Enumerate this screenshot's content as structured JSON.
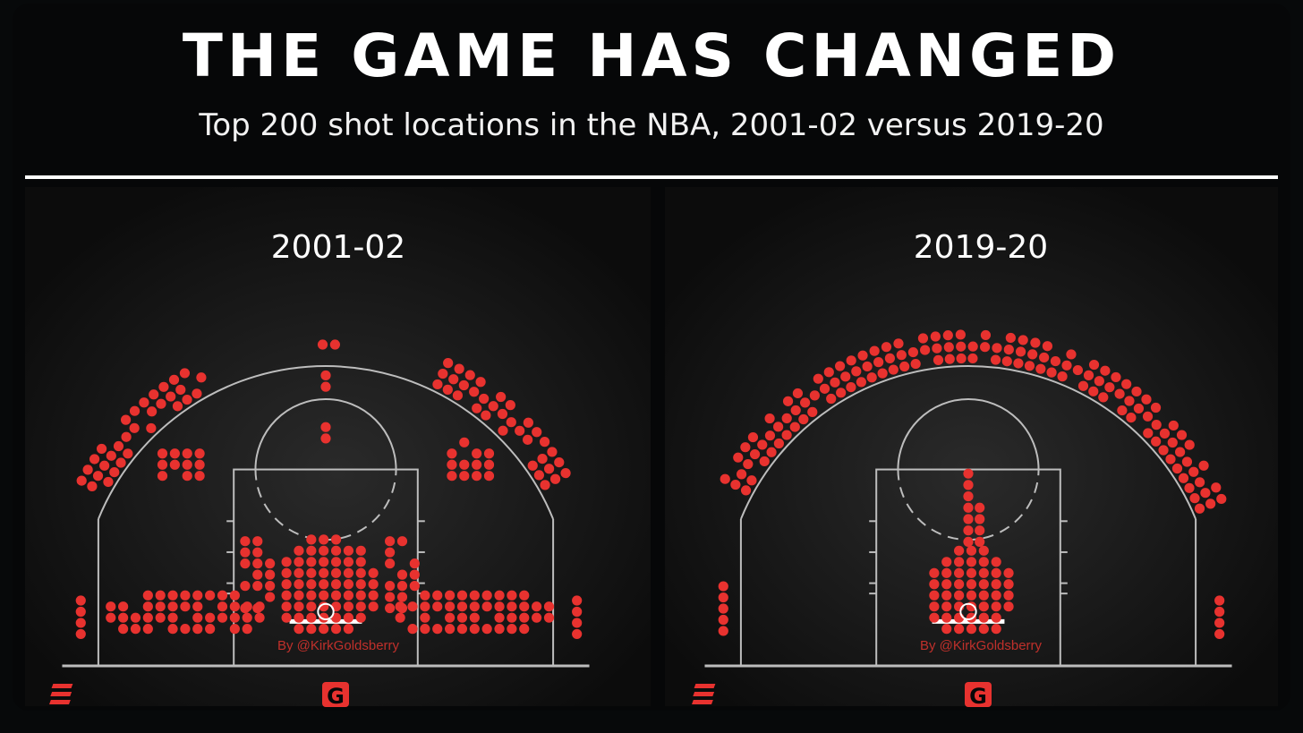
{
  "title": "THE GAME HAS CHANGED",
  "subtitle": "Top 200 shot locations in the NBA, 2001-02 versus 2019-20",
  "credit": "By @KirkGoldsberry",
  "logo": "G",
  "colors": {
    "background": "#07090a",
    "court_lines": "#bdbdbd",
    "shot_dot": "#e8322f",
    "credit_text": "#c0302b",
    "text": "#ffffff"
  },
  "chart_data": [
    {
      "type": "scatter",
      "title": "2001-02",
      "encoding": "shot locations on a half court; each dot is one of the top 200 shot locations",
      "units": "feet, x from basket center (negative = left), y from baseline",
      "clusters": [
        {
          "zone": "restricted area / paint",
          "cx": 0,
          "cy": 7.5,
          "rx": 5,
          "ry": 5,
          "density": 1.0
        },
        {
          "zone": "left baseline midrange",
          "cx": -14,
          "cy": 5,
          "rx": 8,
          "ry": 2.5,
          "density": 0.9
        },
        {
          "zone": "right baseline midrange",
          "cx": 14,
          "cy": 5,
          "rx": 8,
          "ry": 2.5,
          "density": 0.9
        },
        {
          "zone": "left lane edge",
          "cx": -7,
          "cy": 8.5,
          "rx": 2,
          "ry": 4,
          "density": 0.85
        },
        {
          "zone": "right lane edge",
          "cx": 7,
          "cy": 8.5,
          "rx": 2,
          "ry": 4,
          "density": 0.85
        },
        {
          "zone": "left elbow long two",
          "cx": -14,
          "cy": 19.5,
          "rx": 3,
          "ry": 2.2,
          "density": 0.7
        },
        {
          "zone": "right elbow long two",
          "cx": 14,
          "cy": 19.5,
          "rx": 3,
          "ry": 2.2,
          "density": 0.7
        },
        {
          "zone": "left corner three",
          "cx": -24,
          "cy": 4.5,
          "rx": 0.9,
          "ry": 2.5,
          "density": 1.0
        },
        {
          "zone": "right corner three",
          "cx": 24,
          "cy": 4.5,
          "rx": 0.9,
          "ry": 2.5,
          "density": 1.0
        },
        {
          "zone": "top of key",
          "cx": 0,
          "cy": 31,
          "rx": 1.5,
          "ry": 1,
          "density": 1.0
        }
      ],
      "arc_segments": [
        {
          "zone": "left wing three",
          "angle_start": 118,
          "angle_end": 152,
          "density": 0.8
        },
        {
          "zone": "right wing three",
          "angle_start": 30,
          "angle_end": 66,
          "density": 0.8
        }
      ]
    },
    {
      "type": "scatter",
      "title": "2019-20",
      "encoding": "shot locations on a half court; each dot is one of the top 200 shot locations",
      "units": "feet, x from basket center (negative = left), y from baseline",
      "clusters": [
        {
          "zone": "restricted area / paint",
          "cx": 0,
          "cy": 7,
          "rx": 4.5,
          "ry": 4.5,
          "density": 1.0
        },
        {
          "zone": "left corner three",
          "cx": -24,
          "cy": 5.5,
          "rx": 0.9,
          "ry": 3.2,
          "density": 1.0
        },
        {
          "zone": "right corner three",
          "cx": 24,
          "cy": 4.5,
          "rx": 0.9,
          "ry": 2.5,
          "density": 1.0
        }
      ],
      "arc_segments": [
        {
          "zone": "above-the-break three",
          "angle_start": 24,
          "angle_end": 152,
          "density": 1.0
        }
      ]
    }
  ]
}
